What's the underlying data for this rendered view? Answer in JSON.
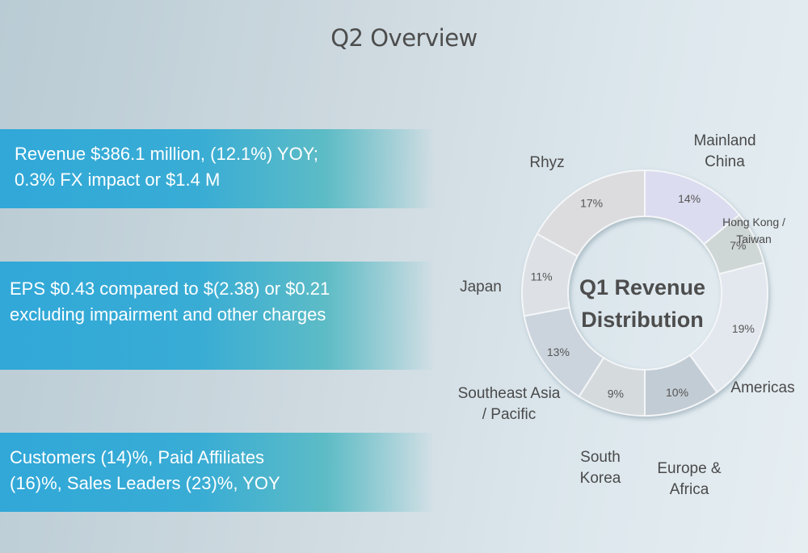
{
  "slide": {
    "title": "Q2 Overview"
  },
  "bullets": [
    {
      "lines": [
        "Revenue $386.1 million, (12.1%) YOY;",
        "0.3% FX impact or $1.4 M"
      ]
    },
    {
      "lines": [
        "EPS $0.43 compared to $(2.38) or $0.21",
        "excluding impairment and other charges"
      ]
    },
    {
      "lines": [
        "Customers (14)%, Paid Affiliates",
        "(16)%, Sales Leaders (23)%, YOY"
      ]
    }
  ],
  "chart_data": {
    "type": "pie",
    "title": "Q1 Revenue Distribution",
    "title_lines": [
      "Q1 Revenue",
      "Distribution"
    ],
    "categories": [
      "Mainland China",
      "Hong Kong / Taiwan",
      "Americas",
      "Europe & Africa",
      "South Korea",
      "Southeast Asia / Pacific",
      "Japan",
      "Rhyz"
    ],
    "label_lines": [
      [
        "Mainland",
        "China"
      ],
      [
        "Hong Kong /",
        "Taiwan"
      ],
      [
        "Americas"
      ],
      [
        "Europe &",
        "Africa"
      ],
      [
        "South",
        "Korea"
      ],
      [
        "Southeast Asia",
        "/ Pacific"
      ],
      [
        "Japan"
      ],
      [
        "Rhyz"
      ]
    ],
    "values": [
      14,
      7,
      19,
      10,
      9,
      13,
      11,
      17
    ],
    "value_labels": [
      "14%",
      "7%",
      "19%",
      "10%",
      "9%",
      "13%",
      "11%",
      "17%"
    ],
    "colors": [
      "#dcdcf0",
      "#cfd6d6",
      "#e3e8ef",
      "#c2ccd4",
      "#d5dadd",
      "#cbd4dc",
      "#dde1e5",
      "#dcdcde"
    ],
    "donut": true
  }
}
